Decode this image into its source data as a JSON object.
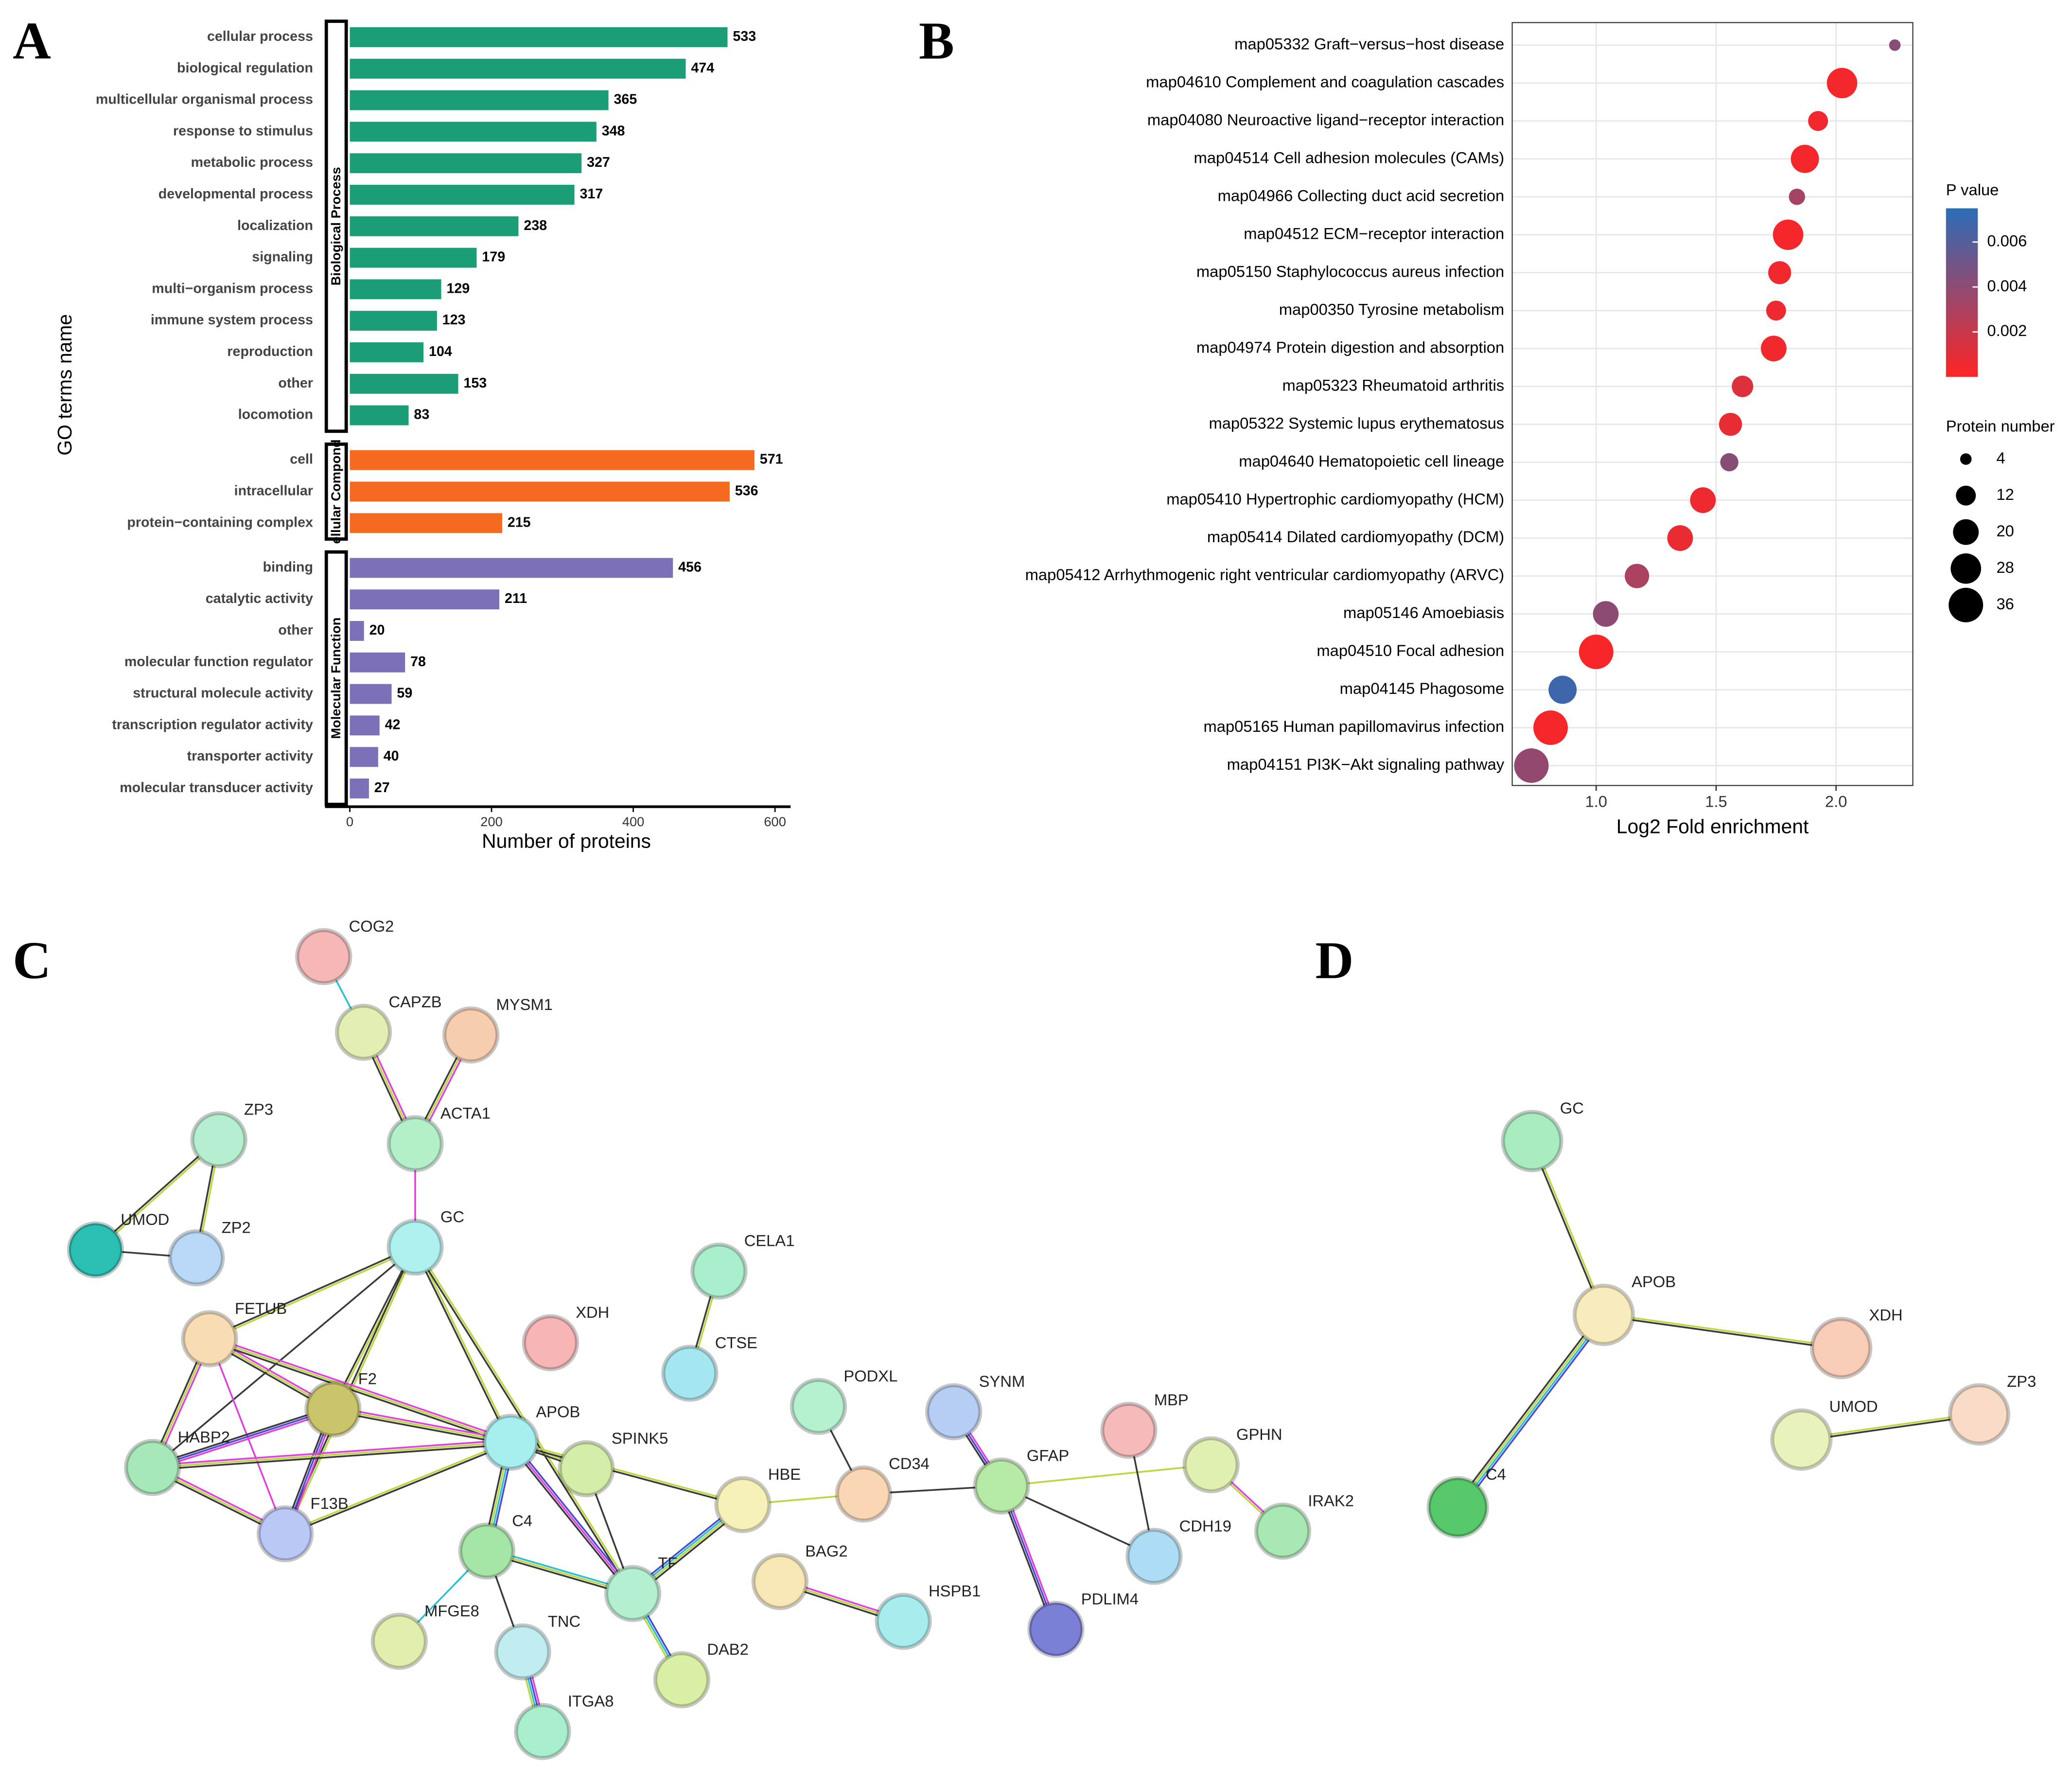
{
  "panels": [
    "A",
    "B",
    "C",
    "D"
  ],
  "chart_data": [
    {
      "type": "bar",
      "orientation": "horizontal",
      "ylabel": "GO terms name",
      "xlabel": "Number of proteins",
      "xlim": [
        -35,
        622
      ],
      "xticks": [
        0,
        200,
        400,
        600
      ],
      "groups": [
        {
          "name": "Biological Process",
          "color": "#1b9e77",
          "categories": [
            "cellular process",
            "biological regulation",
            "multicellular organismal process",
            "response to stimulus",
            "metabolic process",
            "developmental process",
            "localization",
            "signaling",
            "multi−organism process",
            "immune system process",
            "reproduction",
            "other",
            "locomotion"
          ],
          "values": [
            533,
            474,
            365,
            348,
            327,
            317,
            238,
            179,
            129,
            123,
            104,
            153,
            83
          ]
        },
        {
          "name": "ellular Compond",
          "color": "#f46a1f",
          "categories": [
            "cell",
            "intracellular",
            "protein−containing complex"
          ],
          "values": [
            571,
            536,
            215
          ]
        },
        {
          "name": "Molecular Function",
          "color": "#7c70b8",
          "categories": [
            "binding",
            "catalytic activity",
            "other",
            "molecular function regulator",
            "structural molecule activity",
            "transcription regulator activity",
            "transporter activity",
            "molecular transducer activity"
          ],
          "values": [
            456,
            211,
            20,
            78,
            59,
            42,
            40,
            27
          ]
        }
      ]
    },
    {
      "type": "scatter",
      "xlabel": "Log2 Fold enrichment",
      "xlim": [
        0.65,
        2.32
      ],
      "xticks": [
        {
          "value": 1,
          "label": "1.0"
        },
        1.5,
        {
          "value": 2,
          "label": "2.0"
        }
      ],
      "grid": true,
      "categories": [
        "map05332 Graft−versus−host disease",
        "map04610 Complement and coagulation cascades",
        "map04080 Neuroactive ligand−receptor interaction",
        "map04514 Cell adhesion molecules (CAMs)",
        "map04966 Collecting duct acid secretion",
        "map04512 ECM−receptor interaction",
        "map05150 Staphylococcus aureus infection",
        "map00350 Tyrosine metabolism",
        "map04974 Protein digestion and absorption",
        "map05323 Rheumatoid arthritis",
        "map05322 Systemic lupus erythematosus",
        "map04640 Hematopoietic cell lineage",
        "map05410 Hypertrophic cardiomyopathy (HCM)",
        "map05414 Dilated cardiomyopathy (DCM)",
        "map05412 Arrhythmogenic right ventricular cardiomyopathy (ARVC)",
        "map05146 Amoebiasis",
        "map04510 Focal adhesion",
        "map04145 Phagosome",
        "map05165 Human papillomavirus infection",
        "map04151 PI3K−Akt signaling pathway"
      ],
      "values": [
        2.245,
        2.025,
        1.925,
        1.87,
        1.837,
        1.8,
        1.765,
        1.75,
        1.74,
        1.61,
        1.56,
        1.555,
        1.445,
        1.35,
        1.17,
        1.04,
        1.0,
        0.86,
        0.81,
        0.73
      ],
      "sizes": [
        4,
        28,
        12,
        24,
        8,
        28,
        16,
        12,
        20,
        14,
        16,
        10,
        20,
        20,
        18,
        20,
        36,
        24,
        36,
        36
      ],
      "pvalues": [
        0.0042,
        0.0004,
        0.0005,
        0.0004,
        0.0032,
        0.0003,
        0.0005,
        0.0006,
        0.0005,
        0.0012,
        0.0008,
        0.0042,
        0.0006,
        0.0007,
        0.003,
        0.004,
        0.0002,
        0.0068,
        0.0003,
        0.0038
      ],
      "colorbar": {
        "title": "P value",
        "lim": [
          0,
          0.0075
        ],
        "ticks": [
          0.002,
          0.004,
          0.006
        ],
        "colors": [
          "#ff2424",
          "#2a6db8"
        ]
      },
      "size_legend": {
        "title": "Protein number",
        "values": [
          4,
          12,
          20,
          28,
          36
        ]
      }
    }
  ],
  "networks": [
    {
      "nodes": [
        "COG2",
        "CAPZB",
        "MYSM1",
        "ACTA1",
        "ZP3",
        "UMOD",
        "ZP2",
        "GC",
        "FETUB",
        "F2",
        "HABP2",
        "F13B",
        "XDH",
        "APOB",
        "SPINK5",
        "CELA1",
        "CTSE",
        "C4",
        "TF",
        "HBE",
        "PODXL",
        "CD34",
        "SYNM",
        "GFAP",
        "MBP",
        "GPHN",
        "IRAK2",
        "CDH19",
        "BAG2",
        "HSPB1",
        "PDLIM4",
        "MFGE8",
        "TNC",
        "DAB2",
        "ITGA8"
      ]
    },
    {
      "nodes": [
        "GC",
        "APOB",
        "XDH",
        "C4",
        "UMOD",
        "ZP3"
      ]
    }
  ]
}
